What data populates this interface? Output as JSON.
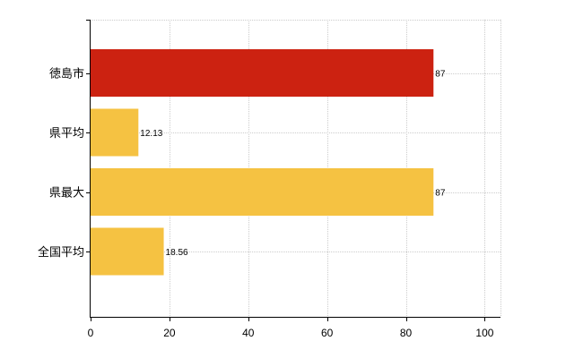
{
  "chart_data": {
    "type": "bar",
    "orientation": "horizontal",
    "categories": [
      "徳島市",
      "県平均",
      "県最大",
      "全国平均"
    ],
    "values": [
      87,
      12.13,
      87,
      18.56
    ],
    "data_labels": [
      "87",
      "12.13",
      "87",
      "18.56"
    ],
    "bar_colors": [
      "#cc2211",
      "#f5c242",
      "#f5c242",
      "#f5c242"
    ],
    "xlim": [
      0,
      104
    ],
    "x_ticks": [
      0,
      20,
      40,
      60,
      80,
      100
    ],
    "x_tick_labels": [
      "0",
      "20",
      "40",
      "60",
      "80",
      "100"
    ],
    "grid": true,
    "legend": "none",
    "title": "",
    "xlabel": "",
    "ylabel": ""
  }
}
